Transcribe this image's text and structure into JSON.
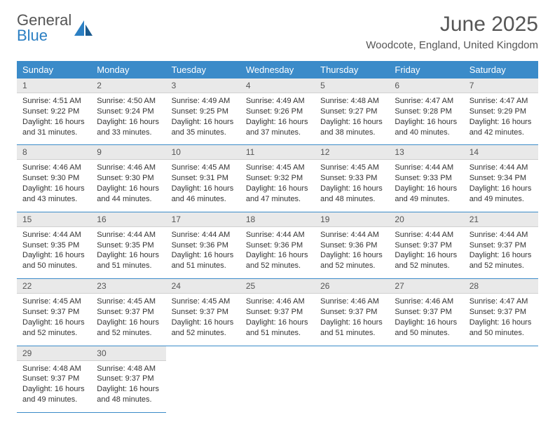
{
  "logo": {
    "text_a": "General",
    "text_b": "Blue"
  },
  "title": "June 2025",
  "location": "Woodcote, England, United Kingdom",
  "colors": {
    "header_bg": "#3b8bc9",
    "header_text": "#ffffff",
    "daynum_bg": "#e9e9e9",
    "text": "#333333",
    "logo_blue": "#2b7fc3"
  },
  "day_headers": [
    "Sunday",
    "Monday",
    "Tuesday",
    "Wednesday",
    "Thursday",
    "Friday",
    "Saturday"
  ],
  "days": [
    {
      "n": "1",
      "sunrise": "Sunrise: 4:51 AM",
      "sunset": "Sunset: 9:22 PM",
      "day1": "Daylight: 16 hours",
      "day2": "and 31 minutes."
    },
    {
      "n": "2",
      "sunrise": "Sunrise: 4:50 AM",
      "sunset": "Sunset: 9:24 PM",
      "day1": "Daylight: 16 hours",
      "day2": "and 33 minutes."
    },
    {
      "n": "3",
      "sunrise": "Sunrise: 4:49 AM",
      "sunset": "Sunset: 9:25 PM",
      "day1": "Daylight: 16 hours",
      "day2": "and 35 minutes."
    },
    {
      "n": "4",
      "sunrise": "Sunrise: 4:49 AM",
      "sunset": "Sunset: 9:26 PM",
      "day1": "Daylight: 16 hours",
      "day2": "and 37 minutes."
    },
    {
      "n": "5",
      "sunrise": "Sunrise: 4:48 AM",
      "sunset": "Sunset: 9:27 PM",
      "day1": "Daylight: 16 hours",
      "day2": "and 38 minutes."
    },
    {
      "n": "6",
      "sunrise": "Sunrise: 4:47 AM",
      "sunset": "Sunset: 9:28 PM",
      "day1": "Daylight: 16 hours",
      "day2": "and 40 minutes."
    },
    {
      "n": "7",
      "sunrise": "Sunrise: 4:47 AM",
      "sunset": "Sunset: 9:29 PM",
      "day1": "Daylight: 16 hours",
      "day2": "and 42 minutes."
    },
    {
      "n": "8",
      "sunrise": "Sunrise: 4:46 AM",
      "sunset": "Sunset: 9:30 PM",
      "day1": "Daylight: 16 hours",
      "day2": "and 43 minutes."
    },
    {
      "n": "9",
      "sunrise": "Sunrise: 4:46 AM",
      "sunset": "Sunset: 9:30 PM",
      "day1": "Daylight: 16 hours",
      "day2": "and 44 minutes."
    },
    {
      "n": "10",
      "sunrise": "Sunrise: 4:45 AM",
      "sunset": "Sunset: 9:31 PM",
      "day1": "Daylight: 16 hours",
      "day2": "and 46 minutes."
    },
    {
      "n": "11",
      "sunrise": "Sunrise: 4:45 AM",
      "sunset": "Sunset: 9:32 PM",
      "day1": "Daylight: 16 hours",
      "day2": "and 47 minutes."
    },
    {
      "n": "12",
      "sunrise": "Sunrise: 4:45 AM",
      "sunset": "Sunset: 9:33 PM",
      "day1": "Daylight: 16 hours",
      "day2": "and 48 minutes."
    },
    {
      "n": "13",
      "sunrise": "Sunrise: 4:44 AM",
      "sunset": "Sunset: 9:33 PM",
      "day1": "Daylight: 16 hours",
      "day2": "and 49 minutes."
    },
    {
      "n": "14",
      "sunrise": "Sunrise: 4:44 AM",
      "sunset": "Sunset: 9:34 PM",
      "day1": "Daylight: 16 hours",
      "day2": "and 49 minutes."
    },
    {
      "n": "15",
      "sunrise": "Sunrise: 4:44 AM",
      "sunset": "Sunset: 9:35 PM",
      "day1": "Daylight: 16 hours",
      "day2": "and 50 minutes."
    },
    {
      "n": "16",
      "sunrise": "Sunrise: 4:44 AM",
      "sunset": "Sunset: 9:35 PM",
      "day1": "Daylight: 16 hours",
      "day2": "and 51 minutes."
    },
    {
      "n": "17",
      "sunrise": "Sunrise: 4:44 AM",
      "sunset": "Sunset: 9:36 PM",
      "day1": "Daylight: 16 hours",
      "day2": "and 51 minutes."
    },
    {
      "n": "18",
      "sunrise": "Sunrise: 4:44 AM",
      "sunset": "Sunset: 9:36 PM",
      "day1": "Daylight: 16 hours",
      "day2": "and 52 minutes."
    },
    {
      "n": "19",
      "sunrise": "Sunrise: 4:44 AM",
      "sunset": "Sunset: 9:36 PM",
      "day1": "Daylight: 16 hours",
      "day2": "and 52 minutes."
    },
    {
      "n": "20",
      "sunrise": "Sunrise: 4:44 AM",
      "sunset": "Sunset: 9:37 PM",
      "day1": "Daylight: 16 hours",
      "day2": "and 52 minutes."
    },
    {
      "n": "21",
      "sunrise": "Sunrise: 4:44 AM",
      "sunset": "Sunset: 9:37 PM",
      "day1": "Daylight: 16 hours",
      "day2": "and 52 minutes."
    },
    {
      "n": "22",
      "sunrise": "Sunrise: 4:45 AM",
      "sunset": "Sunset: 9:37 PM",
      "day1": "Daylight: 16 hours",
      "day2": "and 52 minutes."
    },
    {
      "n": "23",
      "sunrise": "Sunrise: 4:45 AM",
      "sunset": "Sunset: 9:37 PM",
      "day1": "Daylight: 16 hours",
      "day2": "and 52 minutes."
    },
    {
      "n": "24",
      "sunrise": "Sunrise: 4:45 AM",
      "sunset": "Sunset: 9:37 PM",
      "day1": "Daylight: 16 hours",
      "day2": "and 52 minutes."
    },
    {
      "n": "25",
      "sunrise": "Sunrise: 4:46 AM",
      "sunset": "Sunset: 9:37 PM",
      "day1": "Daylight: 16 hours",
      "day2": "and 51 minutes."
    },
    {
      "n": "26",
      "sunrise": "Sunrise: 4:46 AM",
      "sunset": "Sunset: 9:37 PM",
      "day1": "Daylight: 16 hours",
      "day2": "and 51 minutes."
    },
    {
      "n": "27",
      "sunrise": "Sunrise: 4:46 AM",
      "sunset": "Sunset: 9:37 PM",
      "day1": "Daylight: 16 hours",
      "day2": "and 50 minutes."
    },
    {
      "n": "28",
      "sunrise": "Sunrise: 4:47 AM",
      "sunset": "Sunset: 9:37 PM",
      "day1": "Daylight: 16 hours",
      "day2": "and 50 minutes."
    },
    {
      "n": "29",
      "sunrise": "Sunrise: 4:48 AM",
      "sunset": "Sunset: 9:37 PM",
      "day1": "Daylight: 16 hours",
      "day2": "and 49 minutes."
    },
    {
      "n": "30",
      "sunrise": "Sunrise: 4:48 AM",
      "sunset": "Sunset: 9:37 PM",
      "day1": "Daylight: 16 hours",
      "day2": "and 48 minutes."
    }
  ]
}
